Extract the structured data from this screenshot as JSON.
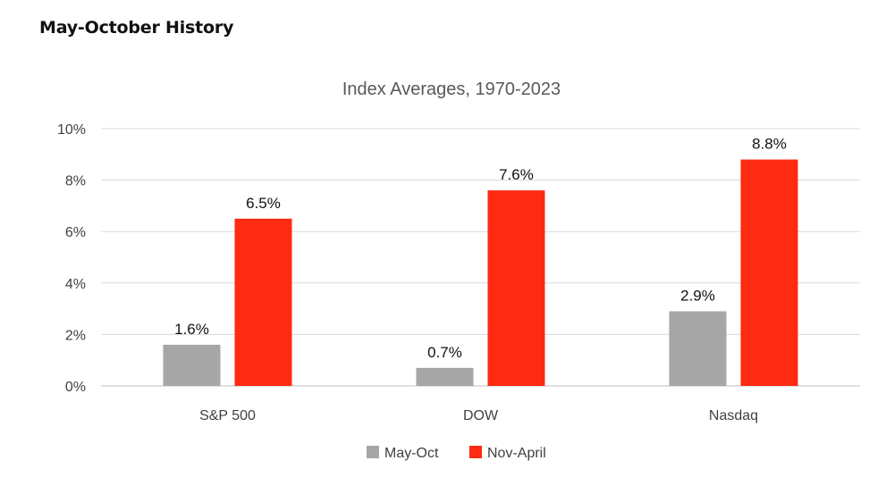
{
  "heading": "May-October History",
  "chart_data": {
    "type": "bar",
    "title": "Index Averages, 1970-2023",
    "categories": [
      "S&P 500",
      "DOW",
      "Nasdaq"
    ],
    "series": [
      {
        "name": "May-Oct",
        "color": "#a6a6a6",
        "values": [
          1.6,
          0.7,
          2.9
        ],
        "labels": [
          "1.6%",
          "0.7%",
          "2.9%"
        ]
      },
      {
        "name": "Nov-April",
        "color": "#ff2a12",
        "values": [
          6.5,
          7.6,
          8.8
        ],
        "labels": [
          "6.5%",
          "7.6%",
          "8.8%"
        ]
      }
    ],
    "ylim": [
      0,
      10
    ],
    "yticks": [
      0,
      2,
      4,
      6,
      8,
      10
    ],
    "ytick_labels": [
      "0%",
      "2%",
      "4%",
      "6%",
      "8%",
      "10%"
    ],
    "xlabel": "",
    "ylabel": "",
    "grid": true,
    "legend_position": "bottom"
  }
}
